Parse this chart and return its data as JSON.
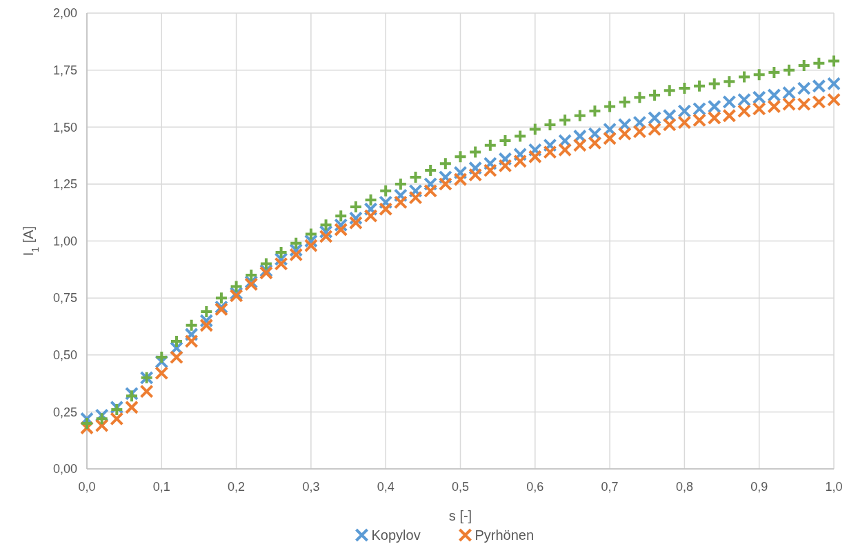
{
  "chart_data": {
    "type": "scatter",
    "xlabel": "s [-]",
    "ylabel": "I$_{1}$ [A]",
    "x": [
      0,
      0.02,
      0.04,
      0.06,
      0.08,
      0.1,
      0.12,
      0.14,
      0.16,
      0.18,
      0.2,
      0.22,
      0.24,
      0.26,
      0.28,
      0.3,
      0.32,
      0.34,
      0.36,
      0.38,
      0.4,
      0.42,
      0.44,
      0.46,
      0.48,
      0.5,
      0.52,
      0.54,
      0.56,
      0.58,
      0.6,
      0.62,
      0.64,
      0.66,
      0.68,
      0.7,
      0.72,
      0.74,
      0.76,
      0.78,
      0.8,
      0.82,
      0.84,
      0.86,
      0.88,
      0.9,
      0.92,
      0.94,
      0.96,
      0.98,
      1
    ],
    "series": [
      {
        "name": "Kopylov",
        "color": "#5b9bd5",
        "values": [
          0.22,
          0.235,
          0.27,
          0.33,
          0.4,
          0.47,
          0.53,
          0.59,
          0.65,
          0.71,
          0.77,
          0.82,
          0.87,
          0.92,
          0.96,
          1.0,
          1.04,
          1.07,
          1.1,
          1.14,
          1.17,
          1.2,
          1.22,
          1.25,
          1.28,
          1.3,
          1.32,
          1.34,
          1.36,
          1.38,
          1.4,
          1.42,
          1.44,
          1.46,
          1.47,
          1.49,
          1.51,
          1.52,
          1.54,
          1.55,
          1.57,
          1.58,
          1.59,
          1.61,
          1.62,
          1.63,
          1.64,
          1.65,
          1.67,
          1.68,
          1.69
        ]
      },
      {
        "name": "Pyrhönen",
        "color": "#ed7d31",
        "values": [
          0.18,
          0.19,
          0.22,
          0.27,
          0.34,
          0.42,
          0.49,
          0.56,
          0.63,
          0.7,
          0.76,
          0.81,
          0.86,
          0.9,
          0.94,
          0.98,
          1.02,
          1.05,
          1.08,
          1.11,
          1.14,
          1.17,
          1.19,
          1.22,
          1.25,
          1.27,
          1.29,
          1.31,
          1.33,
          1.35,
          1.37,
          1.39,
          1.4,
          1.42,
          1.43,
          1.45,
          1.47,
          1.48,
          1.49,
          1.51,
          1.52,
          1.53,
          1.54,
          1.55,
          1.57,
          1.58,
          1.59,
          1.6,
          1.6,
          1.61,
          1.62
        ]
      },
      {
        "color": "#70ad47",
        "marker": "plus",
        "values": [
          0.2,
          0.22,
          0.26,
          0.32,
          0.4,
          0.49,
          0.56,
          0.63,
          0.69,
          0.75,
          0.8,
          0.85,
          0.9,
          0.95,
          0.99,
          1.03,
          1.07,
          1.11,
          1.15,
          1.18,
          1.22,
          1.25,
          1.28,
          1.31,
          1.34,
          1.37,
          1.39,
          1.42,
          1.44,
          1.46,
          1.49,
          1.51,
          1.53,
          1.55,
          1.57,
          1.59,
          1.61,
          1.63,
          1.64,
          1.66,
          1.67,
          1.68,
          1.69,
          1.7,
          1.72,
          1.73,
          1.74,
          1.75,
          1.77,
          1.78,
          1.79
        ]
      }
    ],
    "xlim": [
      0,
      1
    ],
    "ylim": [
      0,
      2
    ],
    "xticks": [
      {
        "value": 0,
        "label": "0,0"
      },
      {
        "value": 0.1,
        "label": "0,1"
      },
      {
        "value": 0.2,
        "label": "0,2"
      },
      {
        "value": 0.3,
        "label": "0,3"
      },
      {
        "value": 0.4,
        "label": "0,4"
      },
      {
        "value": 0.5,
        "label": "0,5"
      },
      {
        "value": 0.6,
        "label": "0,6"
      },
      {
        "value": 0.7,
        "label": "0,7"
      },
      {
        "value": 0.8,
        "label": "0,8"
      },
      {
        "value": 0.9,
        "label": "0,9"
      },
      {
        "value": 1,
        "label": "1,0"
      }
    ],
    "yticks": [
      {
        "value": 0,
        "label": "0,00"
      },
      {
        "value": 0.25,
        "label": "0,25"
      },
      {
        "value": 0.5,
        "label": "0,50"
      },
      {
        "value": 0.75,
        "label": "0,75"
      },
      {
        "value": 1,
        "label": "1,00"
      },
      {
        "value": 1.25,
        "label": "1,25"
      },
      {
        "value": 1.5,
        "label": "1,50"
      },
      {
        "value": 1.75,
        "label": "1,75"
      },
      {
        "value": 2,
        "label": "2,00"
      }
    ],
    "grid": true,
    "legend": "bottom",
    "marker": "cross"
  }
}
